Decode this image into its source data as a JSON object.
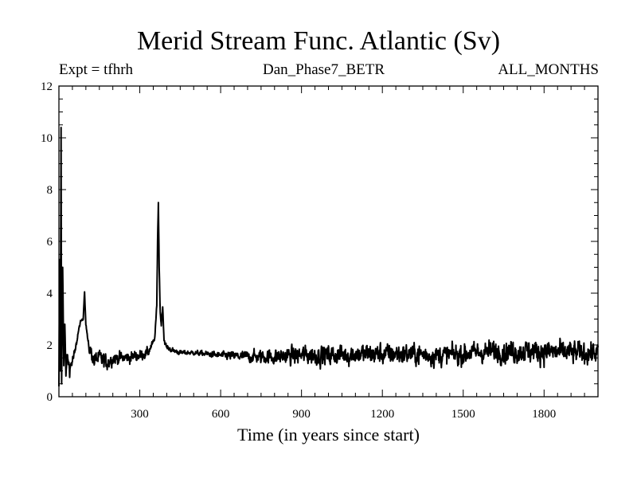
{
  "header": {
    "title": "Merid Stream Func. Atlantic (Sv)",
    "left": "Expt = tfhrh",
    "center": "Dan_Phase7_BETR",
    "right": "ALL_MONTHS"
  },
  "chart_data": {
    "type": "line",
    "title": "Merid Stream Func. Atlantic (Sv)",
    "xlabel": "Time (in years since start)",
    "ylabel": "",
    "xlim": [
      0,
      2000
    ],
    "ylim": [
      0,
      12
    ],
    "x_ticks": [
      300,
      600,
      900,
      1200,
      1500,
      1800
    ],
    "y_ticks": [
      0,
      2,
      4,
      6,
      8,
      10,
      12
    ],
    "grid": false,
    "legend": "none",
    "line_color": "#000000",
    "series": [
      {
        "x": [
          0,
          3,
          5,
          8,
          10,
          14,
          18,
          22,
          26,
          30,
          40,
          50,
          60,
          70,
          80,
          90,
          95,
          100,
          105,
          110,
          120,
          130,
          150,
          175,
          200,
          250,
          300,
          330,
          355,
          363,
          366,
          369,
          372,
          376,
          380,
          385,
          390,
          400,
          420,
          450,
          500,
          600,
          700,
          800,
          900,
          1000,
          1100,
          1200,
          1300,
          1400,
          1500,
          1600,
          1700,
          1800,
          1900,
          2000
        ],
        "y": [
          0.4,
          5.3,
          1.0,
          10.4,
          0.5,
          5.0,
          1.2,
          2.8,
          0.8,
          1.6,
          1.1,
          1.4,
          1.7,
          2.4,
          2.9,
          3.0,
          4.05,
          2.8,
          2.4,
          1.9,
          1.7,
          1.4,
          1.5,
          1.3,
          1.5,
          1.5,
          1.6,
          1.7,
          2.2,
          3.5,
          6.0,
          7.5,
          5.0,
          3.2,
          2.8,
          3.5,
          2.2,
          1.9,
          1.8,
          1.7,
          1.7,
          1.6,
          1.55,
          1.55,
          1.6,
          1.6,
          1.65,
          1.65,
          1.65,
          1.6,
          1.65,
          1.75,
          1.75,
          1.75,
          1.7,
          1.7
        ],
        "noise": [
          0,
          0,
          0,
          0,
          0,
          0,
          0,
          0,
          0,
          0.2,
          0.3,
          0.3,
          0.2,
          0.1,
          0.05,
          0.05,
          0,
          0.05,
          0.1,
          0.2,
          0.3,
          0.35,
          0.35,
          0.35,
          0.3,
          0.25,
          0.25,
          0.2,
          0.1,
          0.05,
          0,
          0,
          0,
          0.1,
          0.1,
          0.1,
          0.1,
          0.1,
          0.1,
          0.1,
          0.1,
          0.15,
          0.25,
          0.35,
          0.4,
          0.45,
          0.45,
          0.45,
          0.45,
          0.45,
          0.45,
          0.45,
          0.5,
          0.5,
          0.5,
          0.45
        ]
      }
    ]
  }
}
